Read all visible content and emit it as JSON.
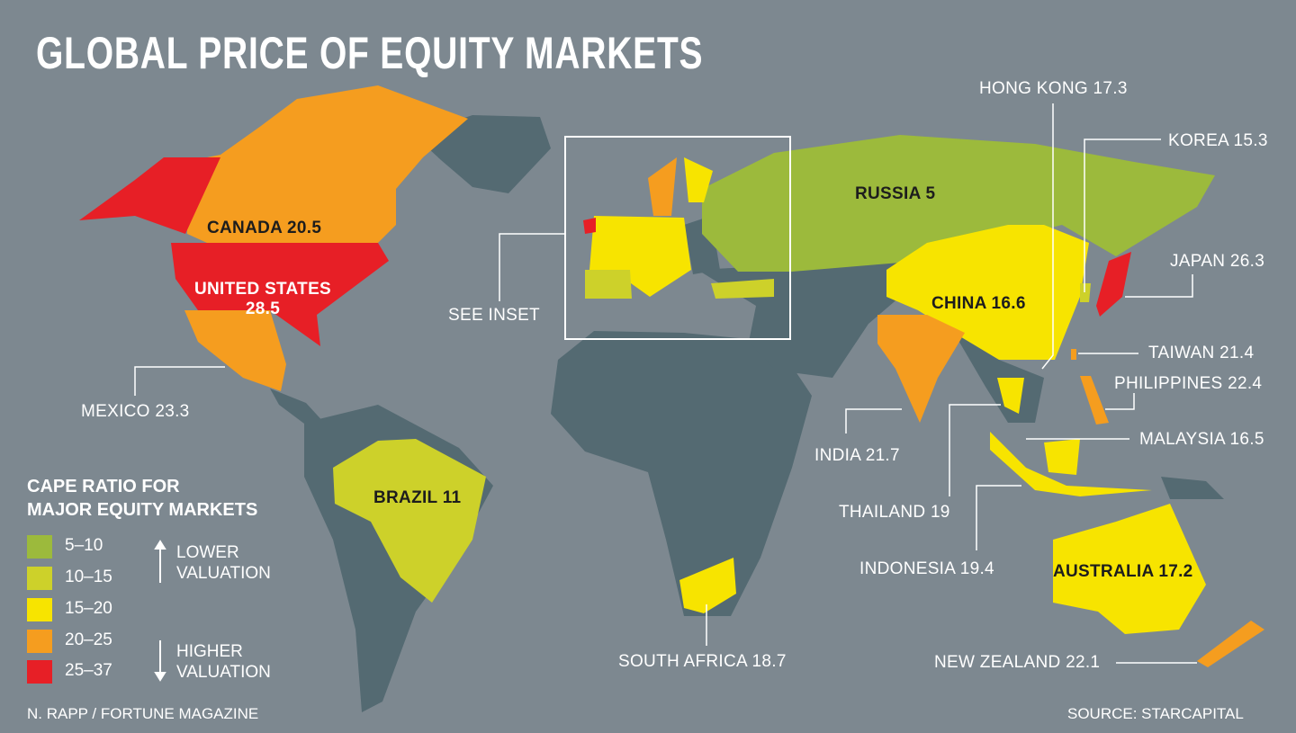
{
  "title": "GLOBAL PRICE OF EQUITY MARKETS",
  "colors": {
    "background": "#7d8890",
    "no_data_land": "#546a72",
    "bin_5_10": "#9cba3c",
    "bin_10_15": "#cdd12a",
    "bin_15_20": "#f7e400",
    "bin_20_25": "#f59d1f",
    "bin_25_37": "#e71f26"
  },
  "markets": [
    {
      "label": "CANADA 20.5",
      "name": "Canada",
      "cape": 20.5
    },
    {
      "label": "UNITED STATES",
      "label2": "28.5",
      "name": "United States",
      "cape": 28.5
    },
    {
      "label": "MEXICO 23.3",
      "name": "Mexico",
      "cape": 23.3
    },
    {
      "label": "BRAZIL 11",
      "name": "Brazil",
      "cape": 11
    },
    {
      "label": "SOUTH AFRICA 18.7",
      "name": "South Africa",
      "cape": 18.7
    },
    {
      "label": "RUSSIA 5",
      "name": "Russia",
      "cape": 5
    },
    {
      "label": "CHINA 16.6",
      "name": "China",
      "cape": 16.6
    },
    {
      "label": "HONG KONG 17.3",
      "name": "Hong Kong",
      "cape": 17.3
    },
    {
      "label": "KOREA 15.3",
      "name": "Korea",
      "cape": 15.3
    },
    {
      "label": "JAPAN 26.3",
      "name": "Japan",
      "cape": 26.3
    },
    {
      "label": "TAIWAN 21.4",
      "name": "Taiwan",
      "cape": 21.4
    },
    {
      "label": "PHILIPPINES 22.4",
      "name": "Philippines",
      "cape": 22.4
    },
    {
      "label": "MALAYSIA 16.5",
      "name": "Malaysia",
      "cape": 16.5
    },
    {
      "label": "INDIA 21.7",
      "name": "India",
      "cape": 21.7
    },
    {
      "label": "THAILAND 19",
      "name": "Thailand",
      "cape": 19
    },
    {
      "label": "INDONESIA 19.4",
      "name": "Indonesia",
      "cape": 19.4
    },
    {
      "label": "AUSTRALIA 17.2",
      "name": "Australia",
      "cape": 17.2
    },
    {
      "label": "NEW ZEALAND 22.1",
      "name": "New Zealand",
      "cape": 22.1
    }
  ],
  "inset_label": "SEE INSET",
  "legend": {
    "title_line1": "CAPE RATIO FOR",
    "title_line2": "MAJOR EQUITY MARKETS",
    "bins": [
      "5–10",
      "10–15",
      "15–20",
      "20–25",
      "25–37"
    ],
    "lower_line1": "LOWER",
    "lower_line2": "VALUATION",
    "higher_line1": "HIGHER",
    "higher_line2": "VALUATION"
  },
  "credit": "N. RAPP / FORTUNE MAGAZINE",
  "source": "SOURCE: STARCAPITAL"
}
